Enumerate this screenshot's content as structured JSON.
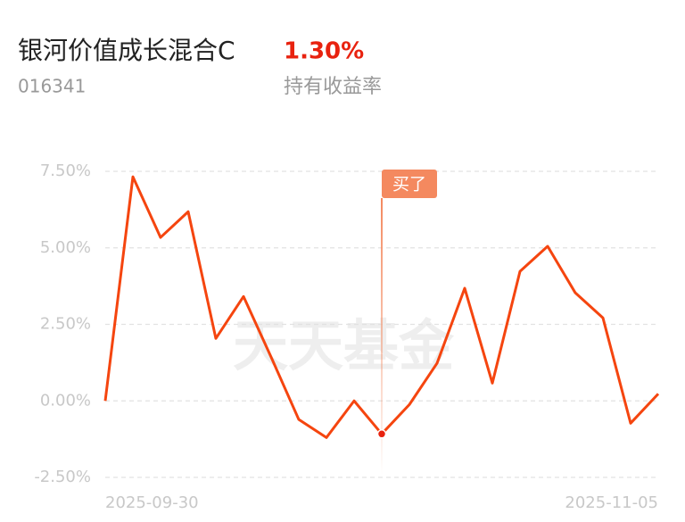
{
  "header": {
    "title": "银河价值成长混合C",
    "code": "016341",
    "return_value": "1.30%",
    "return_label": "持有收益率"
  },
  "chart_data": {
    "type": "line",
    "watermark": "天天基金",
    "categories": [
      "2025-09-30",
      null,
      null,
      null,
      null,
      null,
      null,
      null,
      null,
      null,
      null,
      null,
      null,
      null,
      null,
      null,
      null,
      null,
      null,
      null,
      "2025-11-05"
    ],
    "values": [
      0.0,
      7.32,
      5.34,
      6.18,
      2.04,
      3.41,
      1.43,
      -0.61,
      -1.2,
      0.0,
      -1.08,
      -0.12,
      1.23,
      3.68,
      0.58,
      4.23,
      5.05,
      3.53,
      2.71,
      -0.73,
      0.23
    ],
    "color": "#f5450f",
    "ylim": [
      -2.5,
      7.5
    ],
    "yticks": [
      {
        "value": 7.5,
        "label": "7.50%"
      },
      {
        "value": 5,
        "label": "5.00%"
      },
      {
        "value": 2.5,
        "label": "2.50%"
      },
      {
        "value": 0,
        "label": "0.00%"
      },
      {
        "value": -2.5,
        "label": "-2.50%"
      }
    ],
    "grid": true,
    "annotation": {
      "text": "买了",
      "point": 10
    }
  }
}
